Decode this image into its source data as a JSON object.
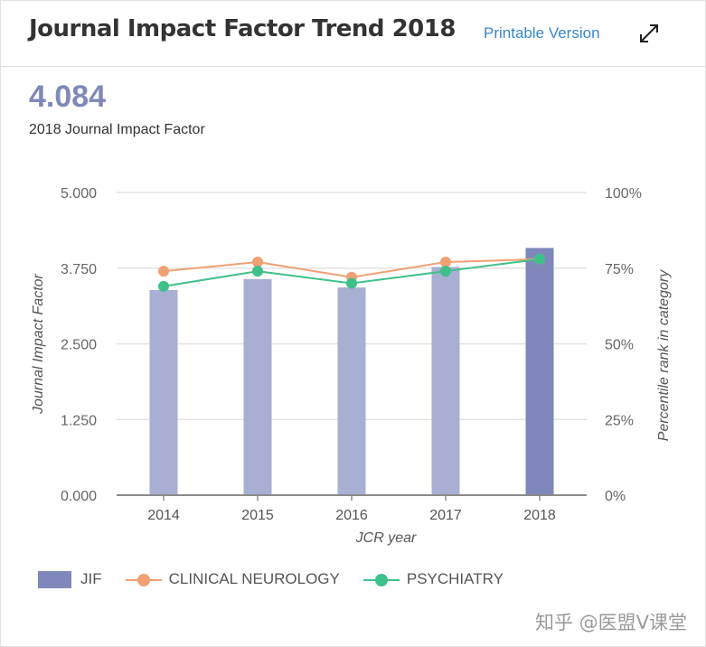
{
  "header": {
    "title": "Journal Impact Factor Trend 2018",
    "printable_label": "Printable Version",
    "expand_icon": "expand-arrows-icon"
  },
  "summary": {
    "jif_value": "4.084",
    "jif_caption": "2018 Journal Impact Factor"
  },
  "colors": {
    "bar": "#a9aed3",
    "bar_highlight": "#7f87bb",
    "neurology": "#f0a072",
    "psychiatry": "#3fc08a",
    "grid": "#e3e3e3",
    "axis": "#8a8a8a"
  },
  "chart_data": {
    "type": "bar",
    "categories": [
      "2014",
      "2015",
      "2016",
      "2017",
      "2018"
    ],
    "xlabel": "JCR year",
    "ylabel": "Journal Impact Factor",
    "y2label": "Percentile rank in category",
    "ylim": [
      0,
      5
    ],
    "y2lim": [
      0,
      100
    ],
    "yticks": [
      "0.000",
      "1.250",
      "2.500",
      "3.750",
      "5.000"
    ],
    "y2ticks": [
      "0%",
      "25%",
      "50%",
      "75%",
      "100%"
    ],
    "grid": true,
    "legend_position": "bottom",
    "series": [
      {
        "name": "JIF",
        "kind": "bar",
        "axis": "left",
        "values": [
          3.39,
          3.57,
          3.43,
          3.77,
          4.084
        ]
      },
      {
        "name": "CLINICAL NEUROLOGY",
        "kind": "line",
        "axis": "right",
        "values": [
          74,
          77,
          72,
          77,
          78
        ]
      },
      {
        "name": "PSYCHIATRY",
        "kind": "line",
        "axis": "right",
        "values": [
          69,
          74,
          70,
          74,
          78
        ]
      }
    ]
  },
  "watermark": "知乎 @医盟V课堂"
}
